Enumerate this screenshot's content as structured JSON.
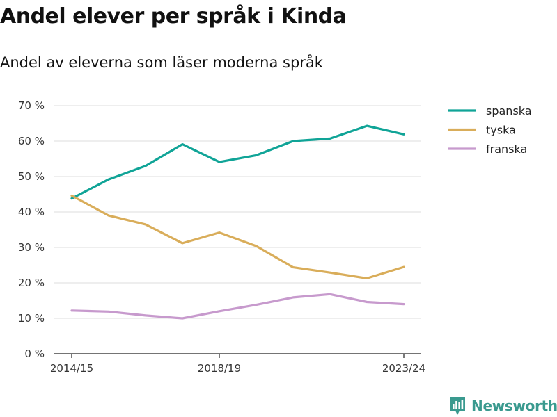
{
  "header": {
    "title": "Andel elever per språk i Kinda",
    "subtitle": "Andel av eleverna som läser moderna språk"
  },
  "brand": {
    "name": "Newsworthy",
    "color": "#3a9a8f"
  },
  "chart_data": {
    "type": "line",
    "title": "Andel elever per språk i Kinda",
    "subtitle": "Andel av eleverna som läser moderna språk",
    "x": [
      "2014/15",
      "2015/16",
      "2016/17",
      "2017/18",
      "2018/19",
      "2019/20",
      "2020/21",
      "2021/22",
      "2022/23",
      "2023/24"
    ],
    "x_tick_labels": [
      "2014/15",
      "2018/19",
      "2023/24"
    ],
    "ylim": [
      0,
      70
    ],
    "y_ticks": [
      0,
      10,
      20,
      30,
      40,
      50,
      60,
      70
    ],
    "y_tick_labels": [
      "0 %",
      "10 %",
      "20 %",
      "30 %",
      "40 %",
      "50 %",
      "60 %",
      "70 %"
    ],
    "grid": true,
    "legend_position": "top-right",
    "series": [
      {
        "name": "spanska",
        "color": "#10a497",
        "values": [
          43.8,
          49.2,
          53.0,
          59.1,
          54.1,
          56.0,
          60.0,
          60.7,
          64.3,
          61.9
        ]
      },
      {
        "name": "tyska",
        "color": "#d9ad5a",
        "values": [
          44.6,
          39.0,
          36.5,
          31.2,
          34.2,
          30.4,
          24.4,
          22.9,
          21.3,
          24.5
        ]
      },
      {
        "name": "franska",
        "color": "#c79acd",
        "values": [
          12.2,
          11.9,
          10.8,
          10.0,
          12.0,
          13.8,
          15.9,
          16.8,
          14.6,
          14.0
        ]
      }
    ]
  }
}
